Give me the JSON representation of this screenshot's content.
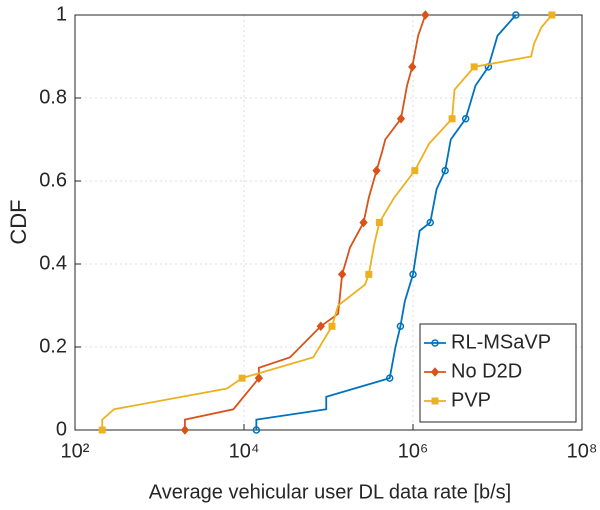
{
  "chart_data": {
    "type": "line",
    "xlabel": "Average vehicular user DL data rate [b/s]",
    "ylabel": "CDF",
    "xscale": "log",
    "xlim": [
      100,
      100000000
    ],
    "xticks": [
      {
        "value": 100,
        "label": "10²"
      },
      {
        "value": 10000,
        "label": "10⁴"
      },
      {
        "value": 1000000,
        "label": "10⁶"
      },
      {
        "value": 100000000,
        "label": "10⁸"
      }
    ],
    "ylim": [
      0,
      1
    ],
    "yticks": [
      0,
      0.2,
      0.4,
      0.6,
      0.8,
      1
    ],
    "grid": true,
    "legend": "lower right",
    "series": [
      {
        "name": "RL-MSaVP",
        "color": "#0072bd",
        "marker": "circle",
        "x": [
          14000,
          14000,
          94000,
          94000,
          530000,
          620000,
          710000,
          800000,
          1000000,
          1200000,
          1600000,
          1900000,
          2400000,
          2800000,
          4200000,
          5500000,
          7800000,
          10000000,
          16500000
        ],
        "values": [
          0,
          0.025,
          0.05,
          0.08,
          0.125,
          0.2,
          0.25,
          0.31,
          0.375,
          0.48,
          0.5,
          0.58,
          0.625,
          0.7,
          0.75,
          0.83,
          0.875,
          0.95,
          1
        ]
      },
      {
        "name": "No D2D",
        "color": "#d95319",
        "marker": "diamond",
        "x": [
          2000,
          2000,
          7500,
          15000,
          15000,
          35000,
          81000,
          130000,
          145000,
          180000,
          260000,
          300000,
          370000,
          430000,
          470000,
          720000,
          850000,
          980000,
          1150000,
          1400000
        ],
        "values": [
          0,
          0.025,
          0.05,
          0.125,
          0.15,
          0.175,
          0.25,
          0.28,
          0.375,
          0.44,
          0.5,
          0.56,
          0.625,
          0.67,
          0.7,
          0.75,
          0.83,
          0.875,
          0.95,
          1
        ]
      },
      {
        "name": "PVP",
        "color": "#edb120",
        "marker": "square",
        "x": [
          210,
          210,
          290,
          6300,
          9500,
          66000,
          110000,
          130000,
          270000,
          300000,
          350000,
          400000,
          600000,
          1050000,
          1550000,
          2900000,
          3100000,
          5300000,
          25000000,
          27000000,
          33000000,
          44000000
        ],
        "values": [
          0,
          0.025,
          0.05,
          0.1,
          0.125,
          0.175,
          0.25,
          0.3,
          0.35,
          0.375,
          0.45,
          0.5,
          0.56,
          0.625,
          0.69,
          0.75,
          0.82,
          0.875,
          0.9,
          0.93,
          0.97,
          1
        ]
      }
    ]
  }
}
